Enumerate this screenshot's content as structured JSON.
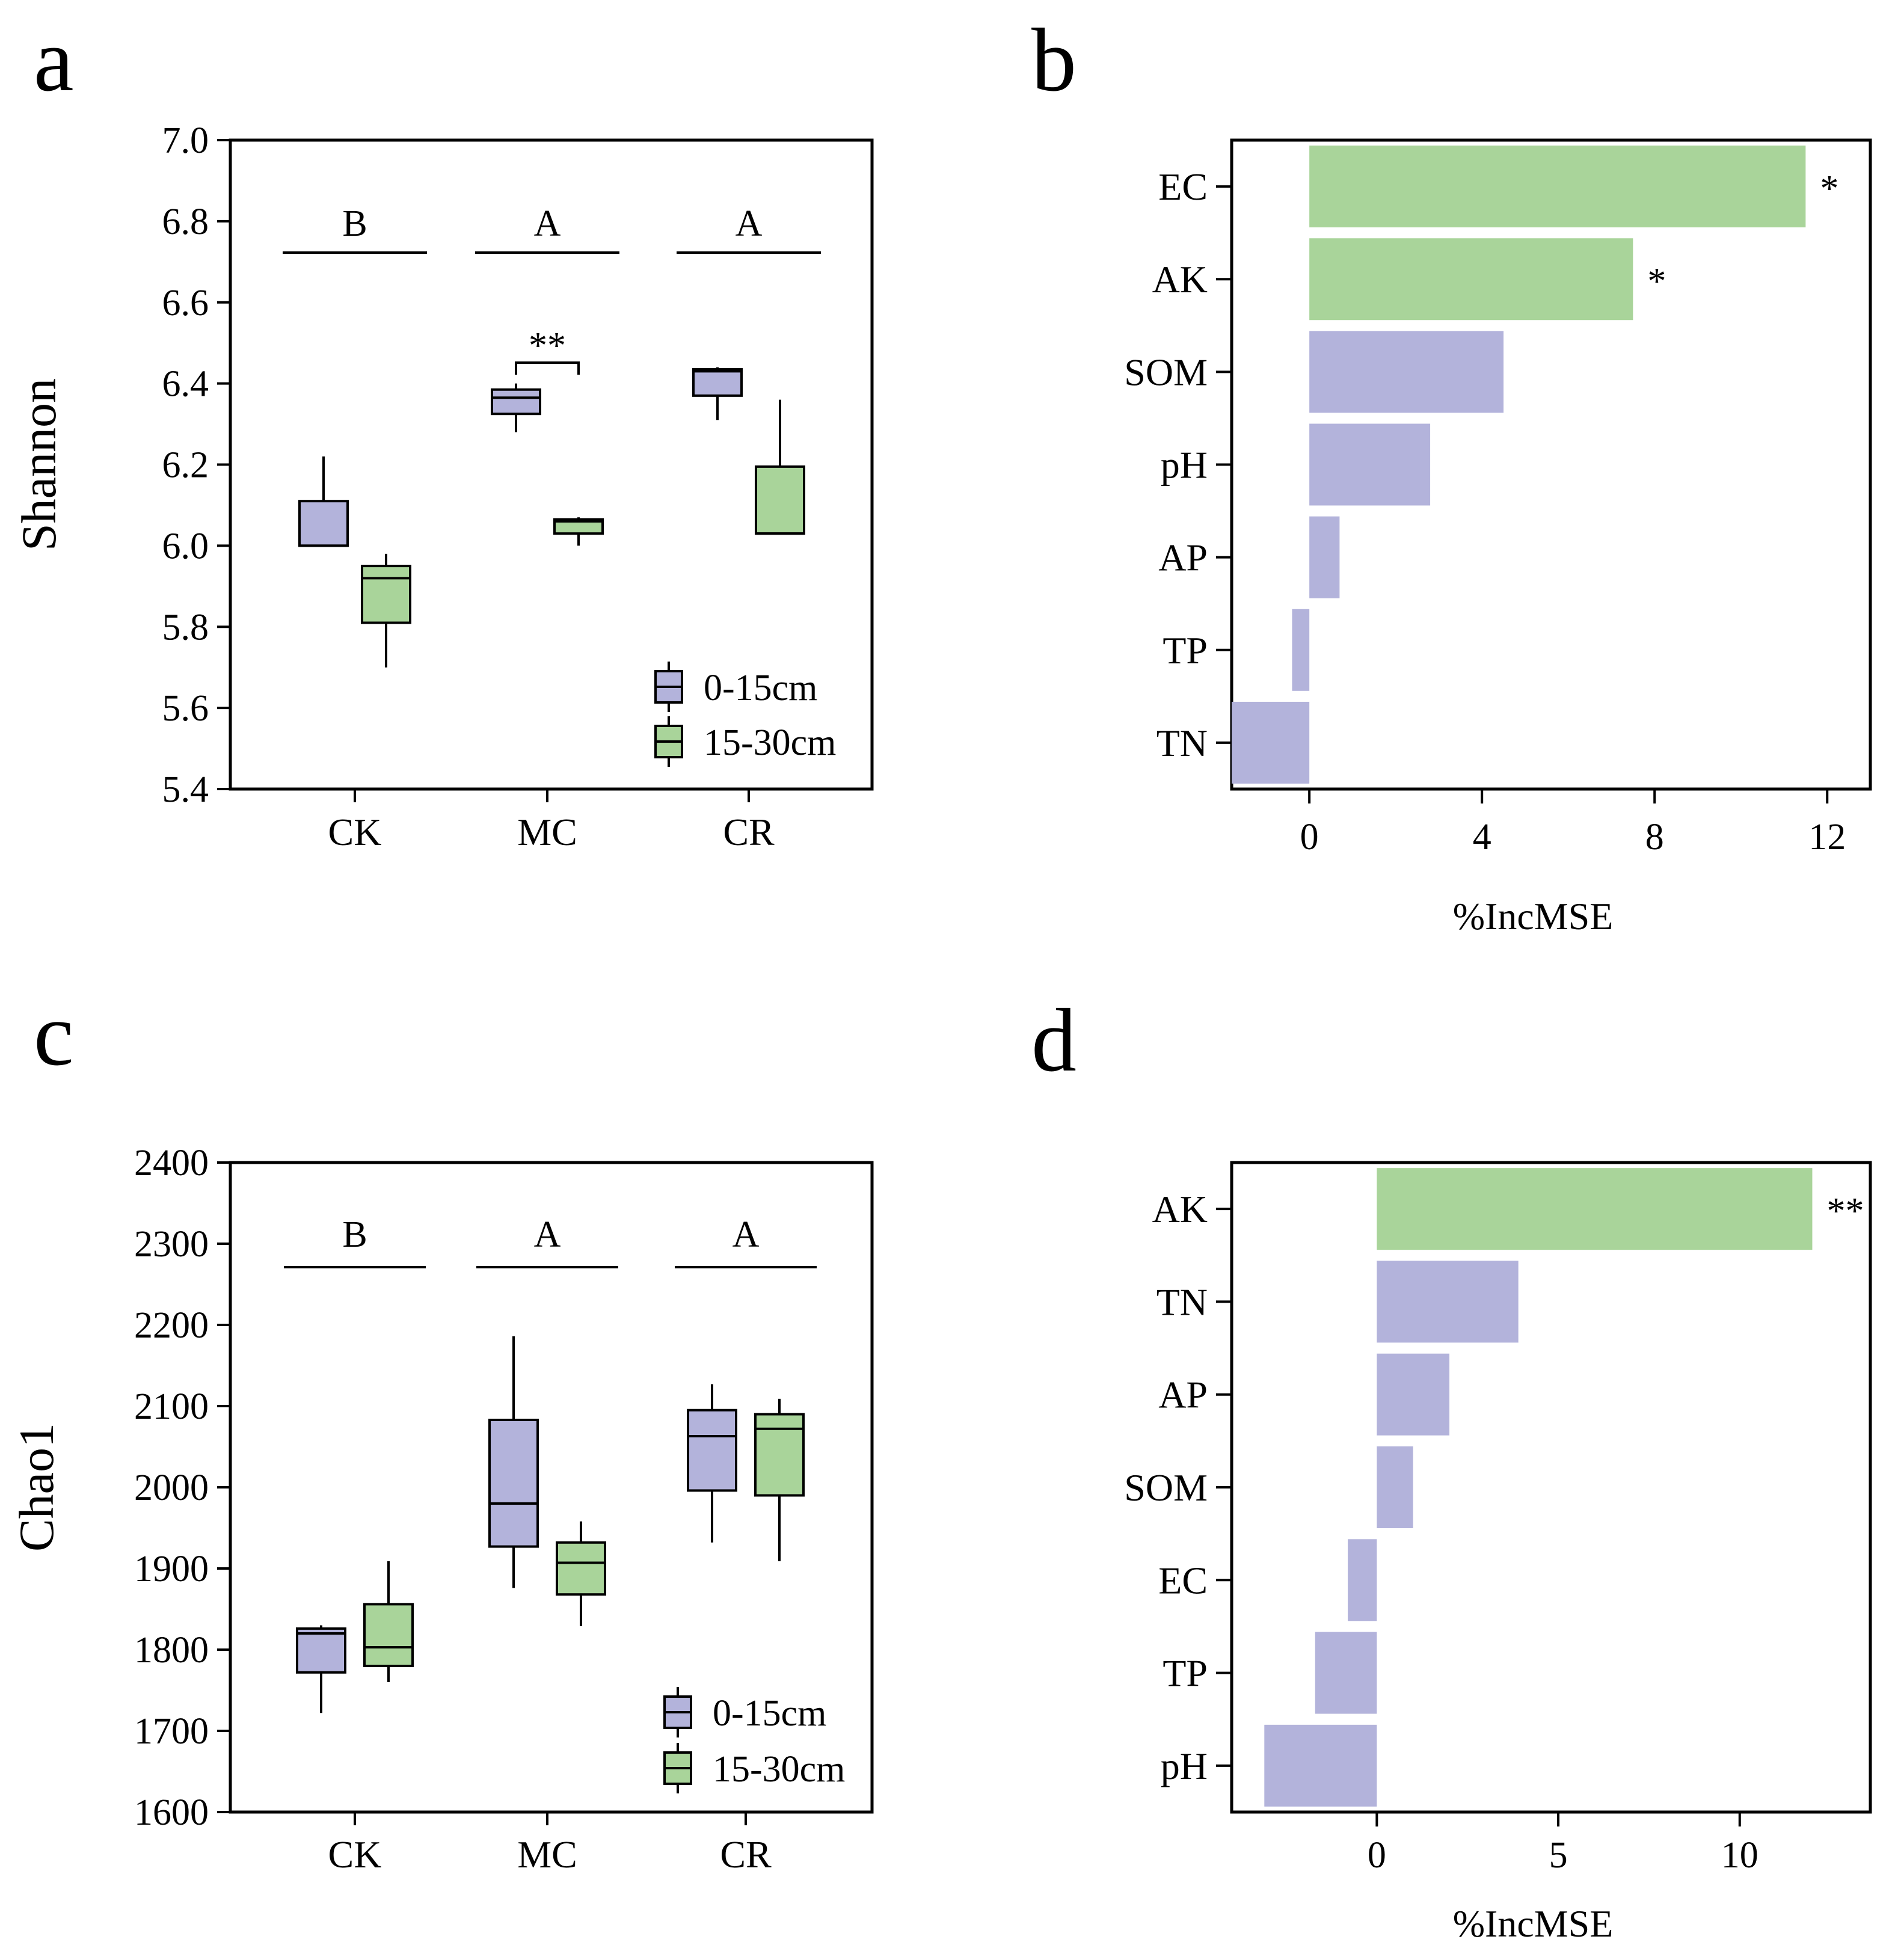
{
  "panels": {
    "a": "a",
    "b": "b",
    "c": "c",
    "d": "d"
  },
  "colors": {
    "series1": "#b3b3db",
    "series2": "#a9d49a"
  },
  "chart_data": [
    {
      "id": "a",
      "type": "box",
      "ylabel": "Shannon",
      "ylim": [
        5.4,
        7.0
      ],
      "yticks": [
        "7.0",
        "6.8",
        "6.6",
        "6.4",
        "6.2",
        "6.0",
        "5.8",
        "5.6",
        "5.4"
      ],
      "yticks_values": [
        7.0,
        6.8,
        6.6,
        6.4,
        6.2,
        6.0,
        5.8,
        5.6,
        5.4
      ],
      "categories": [
        "CK",
        "MC",
        "CR"
      ],
      "series": [
        {
          "name": "0-15cm",
          "boxes": [
            {
              "min": 6.0,
              "q1": 6.0,
              "median": 6.0,
              "q3": 6.11,
              "max": 6.22
            },
            {
              "min": 6.28,
              "q1": 6.325,
              "median": 6.365,
              "q3": 6.385,
              "max": 6.4
            },
            {
              "min": 6.31,
              "q1": 6.37,
              "median": 6.43,
              "q3": 6.435,
              "max": 6.44
            }
          ]
        },
        {
          "name": "15-30cm",
          "boxes": [
            {
              "min": 5.7,
              "q1": 5.81,
              "median": 5.92,
              "q3": 5.95,
              "max": 5.98
            },
            {
              "min": 6.0,
              "q1": 6.03,
              "median": 6.06,
              "q3": 6.065,
              "max": 6.07
            },
            {
              "min": 6.03,
              "q1": 6.03,
              "median": 6.03,
              "q3": 6.195,
              "max": 6.36
            }
          ]
        }
      ],
      "group_letters": [
        "B",
        "A",
        "A"
      ],
      "pair_significance": [
        {
          "category": "MC",
          "label": "**"
        }
      ],
      "legend": [
        "0-15cm",
        "15-30cm"
      ]
    },
    {
      "id": "b",
      "type": "bar",
      "orientation": "horizontal",
      "xlabel": "%IncMSE",
      "xlim": [
        -1.8,
        13.0
      ],
      "xticks": [
        "0",
        "4",
        "8",
        "12"
      ],
      "xticks_values": [
        0,
        4,
        8,
        12
      ],
      "categories": [
        "EC",
        "AK",
        "SOM",
        "pH",
        "AP",
        "TP",
        "TN"
      ],
      "values": [
        11.5,
        7.5,
        4.5,
        2.8,
        0.7,
        -0.4,
        -1.8
      ],
      "significant": [
        true,
        true,
        false,
        false,
        false,
        false,
        false
      ],
      "annotations": [
        "*",
        "*",
        "",
        "",
        "",
        "",
        ""
      ]
    },
    {
      "id": "c",
      "type": "box",
      "ylabel": "Chao1",
      "ylim": [
        1600,
        2400
      ],
      "yticks": [
        "2400",
        "2300",
        "2200",
        "2100",
        "2000",
        "1900",
        "1800",
        "1700",
        "1600"
      ],
      "yticks_values": [
        2400,
        2300,
        2200,
        2100,
        2000,
        1900,
        1800,
        1700,
        1600
      ],
      "categories": [
        "CK",
        "MC",
        "CR"
      ],
      "series": [
        {
          "name": "0-15cm",
          "boxes": [
            {
              "min": 1722,
              "q1": 1772,
              "median": 1820,
              "q3": 1826,
              "max": 1830
            },
            {
              "min": 1876,
              "q1": 1927,
              "median": 1980,
              "q3": 2083,
              "max": 2186
            },
            {
              "min": 1932,
              "q1": 1996,
              "median": 2063,
              "q3": 2095,
              "max": 2127
            }
          ]
        },
        {
          "name": "15-30cm",
          "boxes": [
            {
              "min": 1760,
              "q1": 1780,
              "median": 1803,
              "q3": 1856,
              "max": 1909
            },
            {
              "min": 1829,
              "q1": 1868,
              "median": 1907,
              "q3": 1932,
              "max": 1958
            },
            {
              "min": 1909,
              "q1": 1990,
              "median": 2072,
              "q3": 2090,
              "max": 2109
            }
          ]
        }
      ],
      "group_letters": [
        "B",
        "A",
        "A"
      ],
      "legend": [
        "0-15cm",
        "15-30cm"
      ]
    },
    {
      "id": "d",
      "type": "bar",
      "orientation": "horizontal",
      "xlabel": "%IncMSE",
      "xlim": [
        -4.0,
        13.6
      ],
      "xticks": [
        "0",
        "5",
        "10"
      ],
      "xticks_values": [
        0,
        5,
        10
      ],
      "categories": [
        "AK",
        "TN",
        "AP",
        "SOM",
        "EC",
        "TP",
        "pH"
      ],
      "values": [
        12.0,
        3.9,
        2.0,
        1.0,
        -0.8,
        -1.7,
        -3.1
      ],
      "significant": [
        true,
        false,
        false,
        false,
        false,
        false,
        false
      ],
      "annotations": [
        "**",
        "",
        "",
        "",
        "",
        "",
        ""
      ]
    }
  ]
}
